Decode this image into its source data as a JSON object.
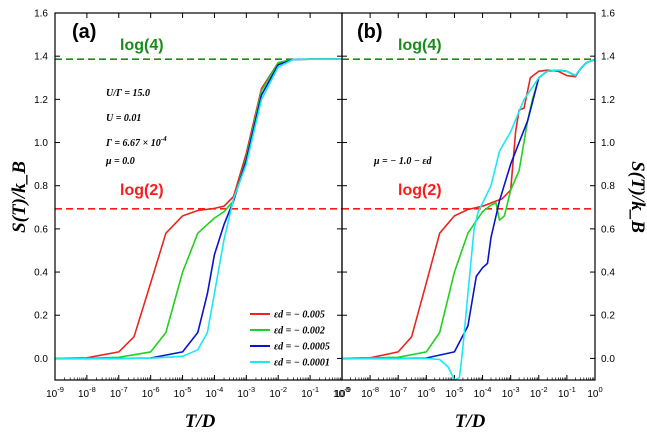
{
  "figure": {
    "xlabel": "T/D",
    "ylabel": "S(T)/k_B"
  },
  "chart_data": [
    {
      "type": "line",
      "panel_label": "(a)",
      "xlabel": "T/D",
      "ylabel": "S(T)/k_B",
      "xscale": "log",
      "xlim": [
        1e-09,
        1
      ],
      "ylim": [
        -0.1,
        1.6
      ],
      "x_tick_exponents": [
        -9,
        -8,
        -7,
        -6,
        -5,
        -4,
        -3,
        -2,
        -1,
        0
      ],
      "y_ticks": [
        "0.0",
        "0.2",
        "0.4",
        "0.6",
        "0.8",
        "1.0",
        "1.2",
        "1.4",
        "1.6"
      ],
      "reference_lines": [
        {
          "label": "log(4)",
          "y": 1.386,
          "color": "#1a8c1a"
        },
        {
          "label": "log(2)",
          "y": 0.693,
          "color": "#ff1a1a"
        }
      ],
      "annotations": [
        "U/Γ = 15.0",
        "U = 0.01",
        "Γ = 6.67 × 10",
        "-4",
        "μ = 0.0"
      ],
      "legend_position": "bottom-right",
      "series": [
        {
          "name": "εd = − 0.005",
          "color": "#e8261f",
          "x": [
            1e-09,
            1e-08,
            1e-07,
            3e-07,
            1e-06,
            3e-06,
            1e-05,
            3e-05,
            0.0001,
            0.0002,
            0.0004,
            0.001,
            0.003,
            0.01,
            0.03,
            0.1,
            1
          ],
          "y": [
            0.0,
            0.003,
            0.03,
            0.1,
            0.35,
            0.58,
            0.66,
            0.685,
            0.695,
            0.705,
            0.75,
            0.95,
            1.25,
            1.37,
            1.385,
            1.386,
            1.386
          ]
        },
        {
          "name": "εd = − 0.002",
          "color": "#22d11e",
          "x": [
            1e-09,
            1e-08,
            1e-07,
            1e-06,
            3e-06,
            1e-05,
            3e-05,
            0.0001,
            0.0002,
            0.0004,
            0.001,
            0.003,
            0.01,
            0.03,
            0.1,
            1
          ],
          "y": [
            0.0,
            0.0,
            0.005,
            0.03,
            0.12,
            0.4,
            0.58,
            0.65,
            0.68,
            0.73,
            0.93,
            1.24,
            1.37,
            1.385,
            1.386,
            1.386
          ]
        },
        {
          "name": "εd = − 0.0005",
          "color": "#0a14c8",
          "x": [
            1e-09,
            1e-07,
            1e-06,
            1e-05,
            3e-05,
            6e-05,
            0.0001,
            0.0002,
            0.0004,
            0.001,
            0.003,
            0.01,
            0.03,
            0.1,
            1
          ],
          "y": [
            0.0,
            0.0,
            0.002,
            0.03,
            0.12,
            0.3,
            0.48,
            0.62,
            0.73,
            0.92,
            1.22,
            1.36,
            1.385,
            1.386,
            1.386
          ]
        },
        {
          "name": "εd = − 0.0001",
          "color": "#1be8f0",
          "x": [
            1e-09,
            1e-07,
            1e-06,
            1e-05,
            3e-05,
            6e-05,
            0.0001,
            0.0002,
            0.0004,
            0.001,
            0.003,
            0.01,
            0.03,
            0.1,
            1
          ],
          "y": [
            0.0,
            0.0,
            0.001,
            0.01,
            0.04,
            0.12,
            0.3,
            0.55,
            0.74,
            0.9,
            1.2,
            1.35,
            1.385,
            1.386,
            1.386
          ]
        }
      ]
    },
    {
      "type": "line",
      "panel_label": "(b)",
      "xlabel": "T/D",
      "ylabel": "S(T)/k_B",
      "xscale": "log",
      "xlim": [
        1e-09,
        1
      ],
      "ylim": [
        -0.1,
        1.6
      ],
      "x_tick_exponents": [
        -9,
        -8,
        -7,
        -6,
        -5,
        -4,
        -3,
        -2,
        -1,
        0
      ],
      "y_ticks": [
        "0.0",
        "0.2",
        "0.4",
        "0.6",
        "0.8",
        "1.0",
        "1.2",
        "1.4",
        "1.6"
      ],
      "reference_lines": [
        {
          "label": "log(4)",
          "y": 1.386,
          "color": "#1a8c1a"
        },
        {
          "label": "log(2)",
          "y": 0.693,
          "color": "#ff1a1a"
        }
      ],
      "annotations": [
        "μ = − 1.0 − εd"
      ],
      "series": [
        {
          "name": "εd = − 0.005",
          "color": "#e8261f",
          "x": [
            1e-09,
            1e-08,
            1e-07,
            3e-07,
            1e-06,
            3e-06,
            1e-05,
            3e-05,
            0.0001,
            0.0002,
            0.0005,
            0.001,
            0.0015,
            0.002,
            0.003,
            0.005,
            0.01,
            0.02,
            0.05,
            0.1,
            0.2,
            0.3,
            0.5,
            1
          ],
          "y": [
            0.0,
            0.003,
            0.03,
            0.1,
            0.35,
            0.58,
            0.66,
            0.69,
            0.705,
            0.72,
            0.74,
            0.78,
            1.05,
            1.15,
            1.16,
            1.3,
            1.33,
            1.335,
            1.33,
            1.31,
            1.305,
            1.34,
            1.37,
            1.385
          ]
        },
        {
          "name": "εd = − 0.002",
          "color": "#22d11e",
          "x": [
            1e-09,
            1e-07,
            1e-06,
            3e-06,
            1e-05,
            3e-05,
            0.0001,
            0.0002,
            0.0003,
            0.0004,
            0.0006,
            0.001,
            0.002,
            0.004,
            0.006,
            0.01,
            0.02,
            0.05,
            0.1,
            0.2,
            0.3,
            0.5,
            1
          ],
          "y": [
            0.0,
            0.005,
            0.03,
            0.12,
            0.4,
            0.58,
            0.68,
            0.71,
            0.72,
            0.64,
            0.66,
            0.78,
            0.87,
            1.1,
            1.2,
            1.3,
            1.33,
            1.335,
            1.33,
            1.31,
            1.34,
            1.37,
            1.385
          ]
        },
        {
          "name": "εd = − 0.0005",
          "color": "#0a14c8",
          "x": [
            1e-09,
            1e-07,
            1e-06,
            1e-05,
            3e-05,
            6e-05,
            0.0001,
            0.00015,
            0.0002,
            0.0004,
            0.001,
            0.002,
            0.004,
            0.01,
            0.02,
            0.05,
            0.1,
            0.2,
            0.3,
            0.5,
            1
          ],
          "y": [
            0.0,
            0.0,
            0.002,
            0.03,
            0.15,
            0.38,
            0.42,
            0.44,
            0.56,
            0.73,
            0.9,
            1.0,
            1.1,
            1.3,
            1.33,
            1.335,
            1.33,
            1.31,
            1.34,
            1.37,
            1.385
          ]
        },
        {
          "name": "εd = − 0.0001",
          "color": "#1be8f0",
          "x": [
            1e-09,
            1e-07,
            1e-06,
            3e-06,
            6e-06,
            1e-05,
            1.5e-05,
            2e-05,
            3e-05,
            5e-05,
            7e-05,
            0.0001,
            0.0002,
            0.0004,
            0.001,
            0.003,
            0.01,
            0.02,
            0.05,
            0.1,
            0.2,
            0.3,
            0.5,
            1
          ],
          "y": [
            0.0,
            0.0,
            0.0,
            -0.005,
            -0.04,
            -0.1,
            -0.09,
            0.05,
            0.3,
            0.6,
            0.68,
            0.72,
            0.8,
            0.96,
            1.05,
            1.2,
            1.3,
            1.33,
            1.335,
            1.33,
            1.31,
            1.34,
            1.37,
            1.385
          ]
        }
      ]
    }
  ]
}
